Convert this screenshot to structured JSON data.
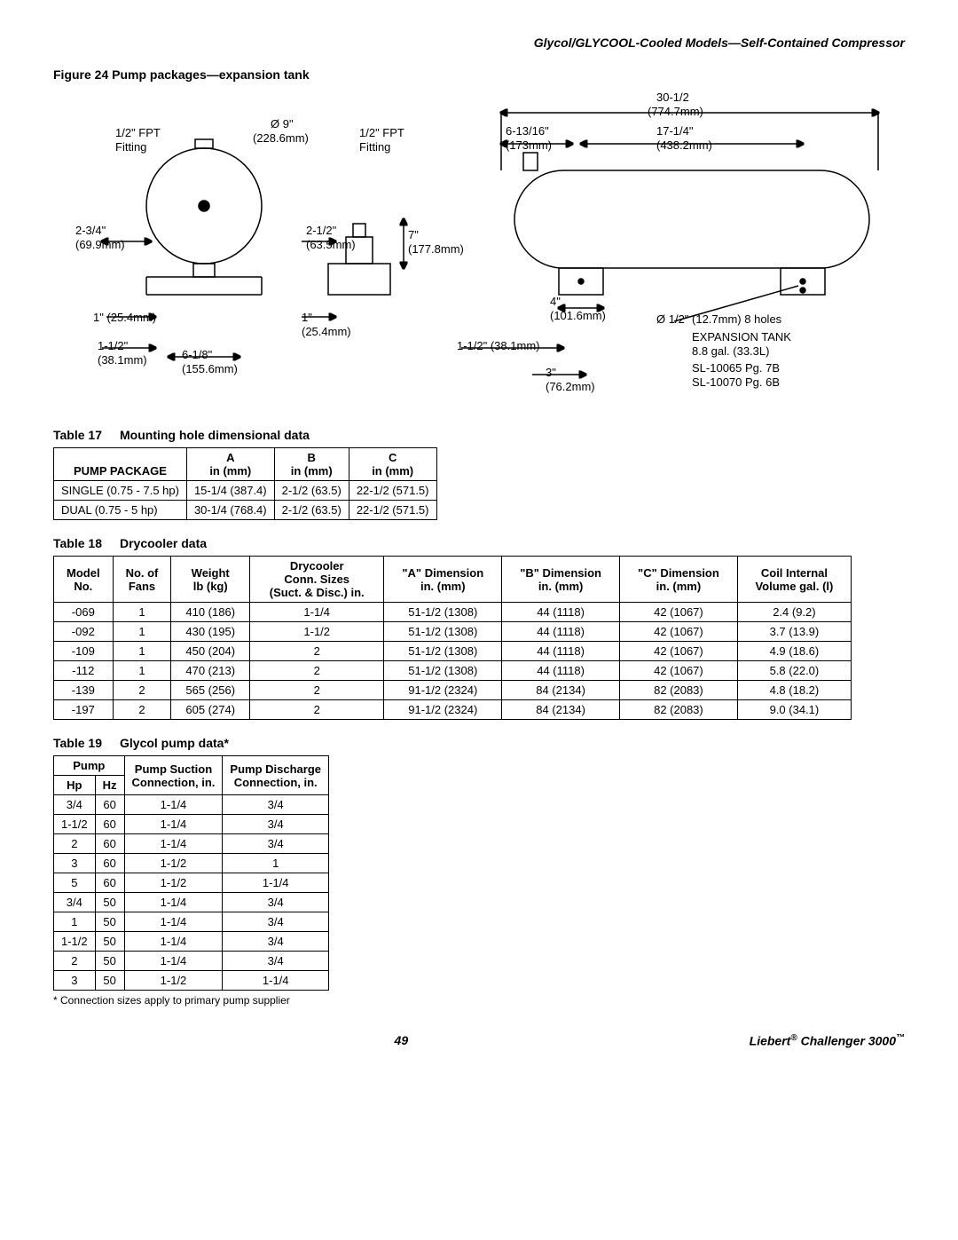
{
  "header": "Glycol/GLYCOOL-Cooled Models—Self-Contained Compressor",
  "figure": {
    "caption": "Figure 24  Pump packages—expansion tank",
    "labels": {
      "dia9": "Ø 9\"",
      "dia9mm": "(228.6mm)",
      "fpt_left": "1/2\" FPT",
      "fitting": "Fitting",
      "fpt_right": "1/2\" FPT",
      "d2_3_4": "2-3/4\"",
      "d2_3_4mm": "(69.9mm)",
      "d2_1_2": "2-1/2\"",
      "d2_1_2mm": "(63.5mm)",
      "d7": "7\"",
      "d7mm": "(177.8mm)",
      "d1a": "1\" (25.4mm)",
      "d1b": "1\"",
      "d1bmm": "(25.4mm)",
      "d1_1_2": "1-1/2\"",
      "d1_1_2mm": "(38.1mm)",
      "d6_1_8": "6-1/8\"",
      "d6_1_8mm": "(155.6mm)",
      "d30_1_2": "30-1/2",
      "d30_1_2mm": "(774.7mm)",
      "d6_13_16": "6-13/16\"",
      "d6_13_16mm": "(173mm)",
      "d17_1_4": "17-1/4\"",
      "d17_1_4mm": "(438.2mm)",
      "d4": "4\"",
      "d4mm": "(101.6mm)",
      "d1_1_2b": "1-1/2\" (38.1mm)",
      "d3": "3\"",
      "d3mm": "(76.2mm)",
      "holes": "Ø 1/2\" (12.7mm) 8 holes",
      "tank": "EXPANSION TANK",
      "tankcap": "8.8 gal. (33.3L)",
      "sl1": "SL-10065 Pg. 7B",
      "sl2": "SL-10070 Pg. 6B"
    }
  },
  "table17": {
    "caption_num": "Table 17",
    "caption_title": "Mounting hole dimensional data",
    "cols": [
      "PUMP PACKAGE",
      "A\nin (mm)",
      "B\nin (mm)",
      "C\nin (mm)"
    ],
    "rows": [
      [
        "SINGLE (0.75 - 7.5 hp)",
        "15-1/4 (387.4)",
        "2-1/2 (63.5)",
        "22-1/2 (571.5)"
      ],
      [
        "DUAL (0.75 - 5 hp)",
        "30-1/4 (768.4)",
        "2-1/2 (63.5)",
        "22-1/2 (571.5)"
      ]
    ]
  },
  "table18": {
    "caption_num": "Table 18",
    "caption_title": "Drycooler data",
    "cols": [
      "Model\nNo.",
      "No. of\nFans",
      "Weight\nlb (kg)",
      "Drycooler\nConn. Sizes\n(Suct. & Disc.) in.",
      "\"A\" Dimension\nin. (mm)",
      "\"B\" Dimension\nin. (mm)",
      "\"C\" Dimension\nin. (mm)",
      "Coil Internal\nVolume gal. (l)"
    ],
    "rows": [
      [
        "-069",
        "1",
        "410 (186)",
        "1-1/4",
        "51-1/2 (1308)",
        "44 (1118)",
        "42 (1067)",
        "2.4 (9.2)"
      ],
      [
        "-092",
        "1",
        "430 (195)",
        "1-1/2",
        "51-1/2 (1308)",
        "44 (1118)",
        "42 (1067)",
        "3.7 (13.9)"
      ],
      [
        "-109",
        "1",
        "450 (204)",
        "2",
        "51-1/2 (1308)",
        "44 (1118)",
        "42 (1067)",
        "4.9 (18.6)"
      ],
      [
        "-112",
        "1",
        "470 (213)",
        "2",
        "51-1/2 (1308)",
        "44 (1118)",
        "42 (1067)",
        "5.8 (22.0)"
      ],
      [
        "-139",
        "2",
        "565 (256)",
        "2",
        "91-1/2 (2324)",
        "84 (2134)",
        "82 (2083)",
        "4.8 (18.2)"
      ],
      [
        "-197",
        "2",
        "605 (274)",
        "2",
        "91-1/2 (2324)",
        "84 (2134)",
        "82 (2083)",
        "9.0 (34.1)"
      ]
    ]
  },
  "table19": {
    "caption_num": "Table 19",
    "caption_title": "Glycol pump data*",
    "group_cols": [
      "Pump",
      "Pump Suction\nConnection, in.",
      "Pump Discharge\nConnection, in."
    ],
    "sub_cols": [
      "Hp",
      "Hz"
    ],
    "rows": [
      [
        "3/4",
        "60",
        "1-1/4",
        "3/4"
      ],
      [
        "1-1/2",
        "60",
        "1-1/4",
        "3/4"
      ],
      [
        "2",
        "60",
        "1-1/4",
        "3/4"
      ],
      [
        "3",
        "60",
        "1-1/2",
        "1"
      ],
      [
        "5",
        "60",
        "1-1/2",
        "1-1/4"
      ],
      [
        "3/4",
        "50",
        "1-1/4",
        "3/4"
      ],
      [
        "1",
        "50",
        "1-1/4",
        "3/4"
      ],
      [
        "1-1/2",
        "50",
        "1-1/4",
        "3/4"
      ],
      [
        "2",
        "50",
        "1-1/4",
        "3/4"
      ],
      [
        "3",
        "50",
        "1-1/2",
        "1-1/4"
      ]
    ],
    "footnote": "* Connection sizes apply to primary pump supplier"
  },
  "footer": {
    "page": "49",
    "product": "Liebert® Challenger 3000™"
  }
}
